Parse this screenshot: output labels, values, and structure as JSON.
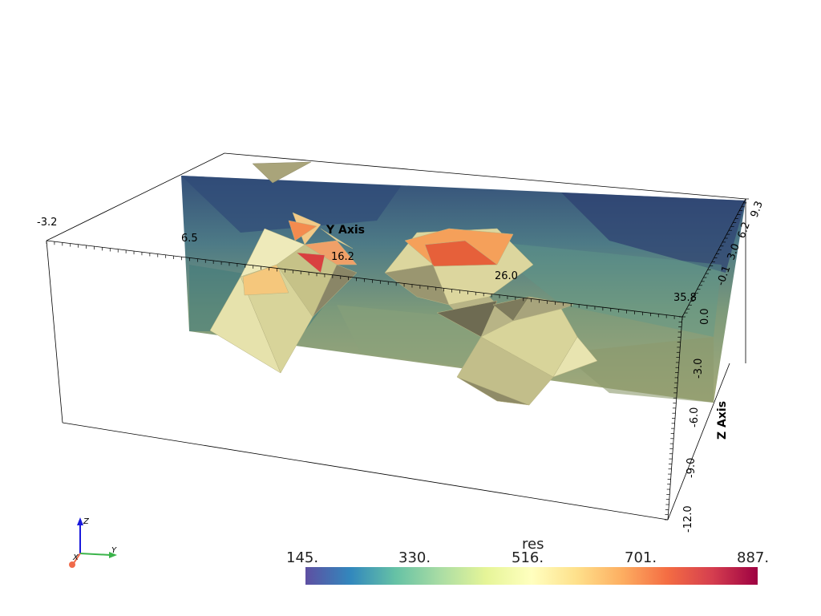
{
  "chart_data": {
    "type": "3d-volume",
    "scalar_name": "res",
    "colormap": "Spectral_r",
    "colorbar": {
      "title": "res",
      "ticks": [
        "145.",
        "330.",
        "516.",
        "701.",
        "887."
      ],
      "range": [
        145,
        887
      ],
      "colors": [
        "#5e4fa2",
        "#3288bd",
        "#66c2a5",
        "#abdda4",
        "#e6f598",
        "#ffffbf",
        "#fee08b",
        "#fdae61",
        "#f46d43",
        "#d53e4f",
        "#9e0142"
      ]
    },
    "axes": {
      "x_ticks": [
        "-3.2",
        "-0.1",
        "3.0",
        "6.2",
        "9.3"
      ],
      "y_title": "Y Axis",
      "y_ticks": [
        "6.5",
        "16.2",
        "26.0",
        "35.8"
      ],
      "z_title": "Z Axis",
      "z_ticks": [
        "0.0",
        "-3.0",
        "-6.0",
        "-9.0",
        "-12.0"
      ]
    },
    "orientation_widget": {
      "x": "X",
      "y": "Y",
      "z": "Z"
    },
    "colors": {
      "isosurface": "#d8d49a",
      "bounding_box": "#000000",
      "slice_low": "#3b5d8c",
      "slice_high": "#e05a3a"
    }
  }
}
